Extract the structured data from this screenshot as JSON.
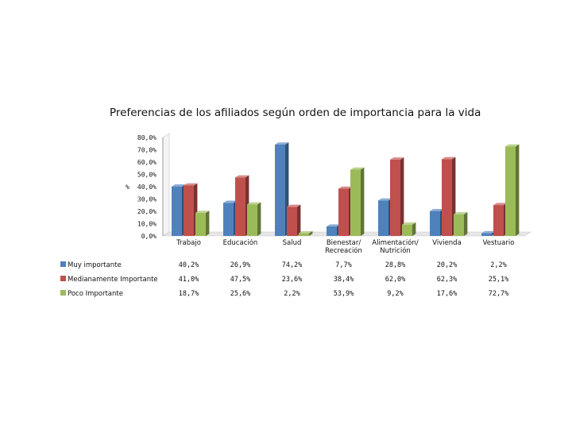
{
  "chart_data": {
    "type": "bar",
    "title": "Preferencias de los afiliados según orden de importancia para la vida",
    "ylabel": "%",
    "ylim": [
      0,
      80
    ],
    "yticks": [
      "0,0%",
      "10,0%",
      "20,0%",
      "30,0%",
      "40,0%",
      "50,0%",
      "60,0%",
      "70,0%",
      "80,0%"
    ],
    "categories": [
      "Trabajo",
      "Educación",
      "Salud",
      "Bienestar/Recreación",
      "Alimentación/ Nutrición",
      "Vivienda",
      "Vestuario"
    ],
    "series": [
      {
        "name": "Muy importante",
        "color": "#4F81BD",
        "values": [
          40.2,
          26.9,
          74.2,
          7.7,
          28.8,
          20.2,
          2.2
        ],
        "labels": [
          "40,2%",
          "26,9%",
          "74,2%",
          "7,7%",
          "28,8%",
          "20,2%",
          "2,2%"
        ]
      },
      {
        "name": "Medianamente Importante",
        "color": "#C0504D",
        "values": [
          41.0,
          47.5,
          23.6,
          38.4,
          62.0,
          62.3,
          25.1
        ],
        "labels": [
          "41,0%",
          "47,5%",
          "23,6%",
          "38,4%",
          "62,0%",
          "62,3%",
          "25,1%"
        ]
      },
      {
        "name": "Poco Importante",
        "color": "#9BBB59",
        "values": [
          18.7,
          25.6,
          2.2,
          53.9,
          9.2,
          17.6,
          72.7
        ],
        "labels": [
          "18,7%",
          "25,6%",
          "2,2%",
          "53,9%",
          "9,2%",
          "17,6%",
          "72,7%"
        ]
      }
    ],
    "grid": false,
    "legend": "data-table-left"
  }
}
